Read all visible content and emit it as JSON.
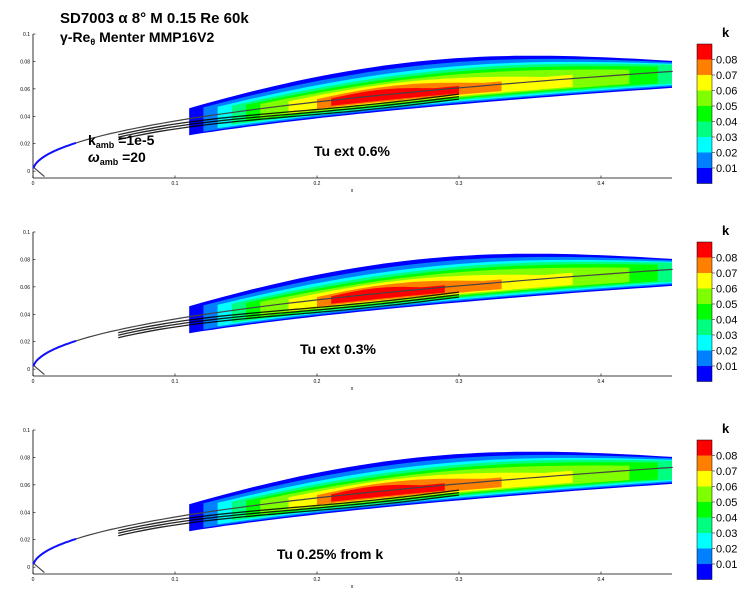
{
  "header": {
    "title_line1": "SD7003 α 8° M 0.15 Re 60k",
    "title_line2_main": "γ-Re",
    "title_line2_sub": "θ",
    "title_line2_rest": " Menter MMP16V2"
  },
  "ambient": {
    "k_symbol": "k",
    "k_sub": "amb",
    "k_value": " =1e-5",
    "omega_symbol": "ω",
    "omega_sub": "amb",
    "omega_value": " =20"
  },
  "colors": {
    "levels": [
      "#0000ff",
      "#0080ff",
      "#00ffff",
      "#00ff80",
      "#00ff00",
      "#80ff00",
      "#ffff00",
      "#ff8000",
      "#ff0000"
    ]
  },
  "chart_data": [
    {
      "type": "heatmap",
      "annotation": "Tu ext 0.6%",
      "xlabel": "x",
      "ylabel": "",
      "xlim": [
        0,
        0.45
      ],
      "ylim": [
        -0.005,
        0.1
      ],
      "x_ticks": [
        "0",
        "0.1",
        "0.2",
        "0.3",
        "0.4"
      ],
      "y_ticks": [
        "0",
        "0.02",
        "0.04",
        "0.06",
        "0.08",
        "0.1"
      ],
      "colorbar": {
        "title": "k",
        "levels": [
          "0.01",
          "0.02",
          "0.03",
          "0.04",
          "0.05",
          "0.06",
          "0.07",
          "0.08"
        ]
      },
      "peak_k": 0.085,
      "peak_x": 0.26
    },
    {
      "type": "heatmap",
      "annotation": "Tu ext 0.3%",
      "xlabel": "x",
      "ylabel": "",
      "xlim": [
        0,
        0.45
      ],
      "ylim": [
        -0.005,
        0.1
      ],
      "x_ticks": [
        "0",
        "0.1",
        "0.2",
        "0.3",
        "0.4"
      ],
      "y_ticks": [
        "0",
        "0.02",
        "0.04",
        "0.06",
        "0.08",
        "0.1"
      ],
      "colorbar": {
        "title": "k",
        "levels": [
          "0.01",
          "0.02",
          "0.03",
          "0.04",
          "0.05",
          "0.06",
          "0.07",
          "0.08"
        ]
      },
      "peak_k": 0.085,
      "peak_x": 0.25
    },
    {
      "type": "heatmap",
      "annotation": "Tu 0.25% from k",
      "xlabel": "x",
      "ylabel": "",
      "xlim": [
        0,
        0.45
      ],
      "ylim": [
        -0.005,
        0.1
      ],
      "x_ticks": [
        "0",
        "0.1",
        "0.2",
        "0.3",
        "0.4"
      ],
      "y_ticks": [
        "0",
        "0.02",
        "0.04",
        "0.06",
        "0.08",
        "0.1"
      ],
      "colorbar": {
        "title": "k",
        "levels": [
          "0.01",
          "0.02",
          "0.03",
          "0.04",
          "0.05",
          "0.06",
          "0.07",
          "0.08"
        ]
      },
      "peak_k": 0.085,
      "peak_x": 0.25
    }
  ]
}
